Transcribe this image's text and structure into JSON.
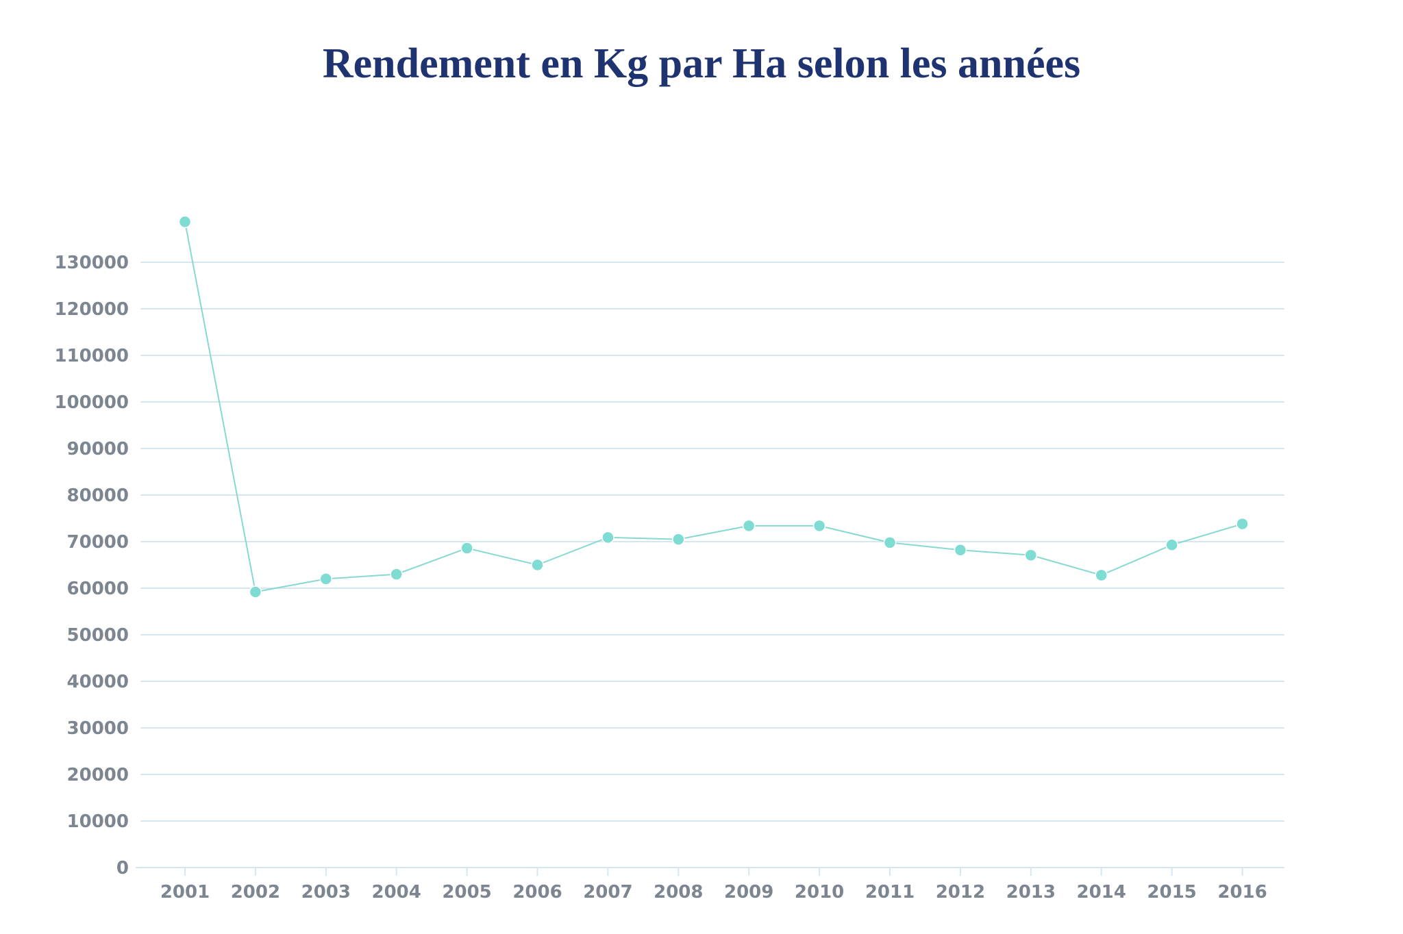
{
  "chart_data": {
    "type": "line",
    "title": "Rendement en Kg par Ha selon les années",
    "xlabel": "",
    "ylabel": "",
    "categories": [
      "2001",
      "2002",
      "2003",
      "2004",
      "2005",
      "2006",
      "2007",
      "2008",
      "2009",
      "2010",
      "2011",
      "2012",
      "2013",
      "2014",
      "2015",
      "2016"
    ],
    "series": [
      {
        "values": [
          138700,
          59200,
          62000,
          63000,
          68600,
          65000,
          70900,
          70500,
          73400,
          73400,
          69800,
          68200,
          67100,
          62800,
          69300,
          73800
        ]
      }
    ],
    "ylim": [
      0,
      130000
    ],
    "yticks": [
      "0",
      "10000",
      "20000",
      "30000",
      "40000",
      "50000",
      "60000",
      "70000",
      "80000",
      "90000",
      "100000",
      "110000",
      "120000",
      "130000"
    ],
    "grid": true,
    "legend": "none",
    "colors": {
      "line": "#86d9d0",
      "marker": "#7fdcd2",
      "grid": "#d6e6ee",
      "tick_text": "#7d8590",
      "title": "#1f3370"
    }
  }
}
